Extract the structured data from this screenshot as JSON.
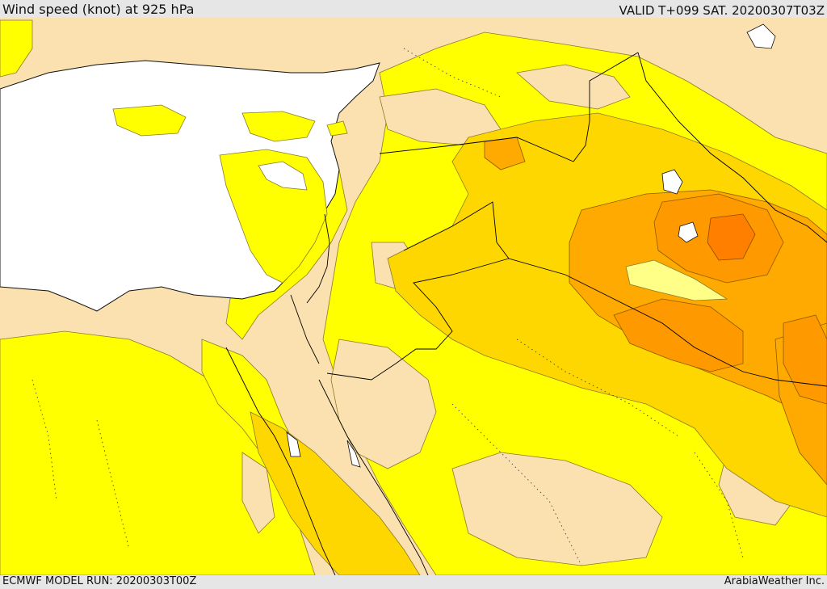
{
  "header": {
    "title": "Wind speed (knot) at 925 hPa",
    "valid": "VALID T+099 SAT. 20200307T03Z"
  },
  "footer": {
    "model_run": "ECMWF MODEL RUN: 20200303T00Z",
    "credit": "ArabiaWeather Inc."
  },
  "map": {
    "colors": {
      "calm": "#fce1b0",
      "band_1": "#ffff00",
      "band_2": "#ffd700",
      "band_3": "#ffaa00",
      "band_4": "#ff9900",
      "band_5": "#ff8000",
      "sea_white": "#ffffff",
      "border": "#000000"
    }
  }
}
